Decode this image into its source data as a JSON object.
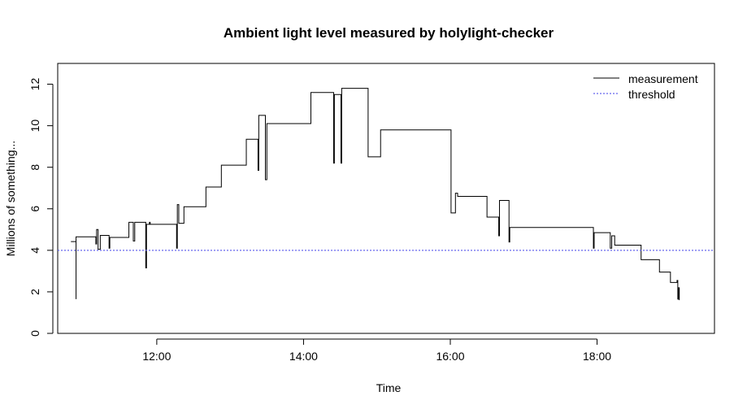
{
  "chart_data": {
    "type": "line",
    "title": "Ambient light level measured by holylight-checker",
    "xlabel": "Time",
    "ylabel": "Millions of something...",
    "x_unit": "hours of day",
    "xlim": [
      10.65,
      19.6
    ],
    "ylim": [
      0,
      13
    ],
    "x_ticks": [
      {
        "value": 12,
        "label": "12:00"
      },
      {
        "value": 14,
        "label": "14:00"
      },
      {
        "value": 16,
        "label": "16:00"
      },
      {
        "value": 18,
        "label": "18:00"
      }
    ],
    "y_ticks": [
      {
        "value": 0,
        "label": "0"
      },
      {
        "value": 2,
        "label": "2"
      },
      {
        "value": 4,
        "label": "4"
      },
      {
        "value": 6,
        "label": "6"
      },
      {
        "value": 8,
        "label": "8"
      },
      {
        "value": 10,
        "label": "10"
      },
      {
        "value": 12,
        "label": "12"
      }
    ],
    "grid": false,
    "legend_position": "top-right",
    "series": [
      {
        "name": "measurement",
        "style": "step",
        "color": "#000000",
        "points": [
          [
            10.83,
            4.42
          ],
          [
            10.9,
            1.65
          ],
          [
            10.9,
            4.65
          ],
          [
            11.17,
            4.3
          ],
          [
            11.18,
            5.0
          ],
          [
            11.2,
            4.05
          ],
          [
            11.23,
            4.72
          ],
          [
            11.35,
            4.1
          ],
          [
            11.36,
            4.62
          ],
          [
            11.62,
            5.35
          ],
          [
            11.68,
            4.45
          ],
          [
            11.7,
            5.35
          ],
          [
            11.85,
            3.15
          ],
          [
            11.86,
            5.25
          ],
          [
            11.9,
            5.35
          ],
          [
            11.91,
            5.25
          ],
          [
            12.27,
            4.1
          ],
          [
            12.28,
            6.2
          ],
          [
            12.3,
            5.3
          ],
          [
            12.37,
            6.1
          ],
          [
            12.67,
            7.05
          ],
          [
            12.88,
            8.1
          ],
          [
            13.22,
            9.35
          ],
          [
            13.38,
            7.85
          ],
          [
            13.39,
            10.5
          ],
          [
            13.48,
            7.4
          ],
          [
            13.5,
            10.1
          ],
          [
            13.7,
            10.1
          ],
          [
            14.1,
            11.6
          ],
          [
            14.41,
            8.2
          ],
          [
            14.42,
            11.5
          ],
          [
            14.51,
            8.2
          ],
          [
            14.52,
            11.8
          ],
          [
            14.88,
            8.5
          ],
          [
            15.05,
            9.8
          ],
          [
            16.01,
            5.8
          ],
          [
            16.07,
            6.75
          ],
          [
            16.1,
            6.6
          ],
          [
            16.5,
            5.6
          ],
          [
            16.66,
            4.7
          ],
          [
            16.67,
            6.4
          ],
          [
            16.8,
            4.4
          ],
          [
            16.81,
            5.1
          ],
          [
            17.95,
            4.1
          ],
          [
            17.96,
            4.85
          ],
          [
            18.18,
            4.1
          ],
          [
            18.2,
            4.7
          ],
          [
            18.24,
            4.25
          ],
          [
            18.6,
            3.55
          ],
          [
            18.85,
            2.95
          ],
          [
            19.0,
            2.45
          ],
          [
            19.09,
            2.55
          ],
          [
            19.1,
            1.65
          ],
          [
            19.11,
            2.2
          ],
          [
            19.12,
            1.6
          ]
        ]
      },
      {
        "name": "threshold",
        "style": "dotted",
        "color": "#6666ee",
        "y": 4
      }
    ]
  }
}
